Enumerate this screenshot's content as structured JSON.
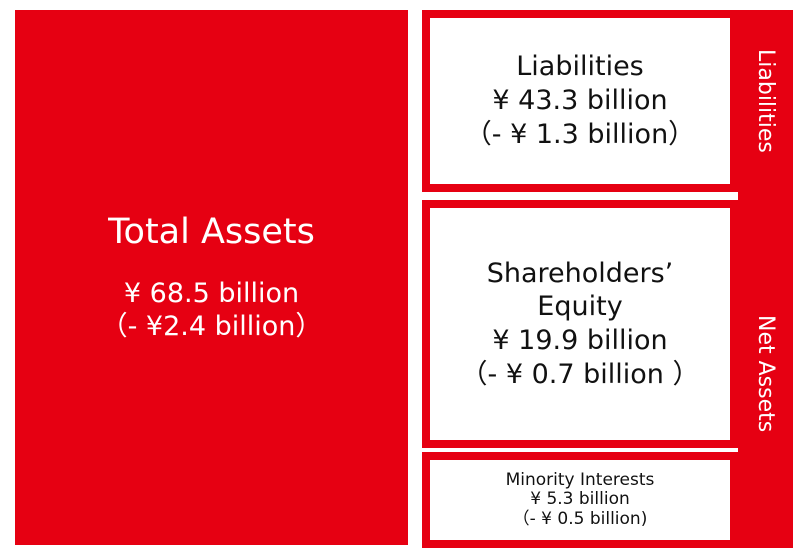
{
  "total_assets": {
    "title": "Total Assets",
    "amount": "¥ 68.5 billion",
    "change": "（- ¥2.4 billion）"
  },
  "liabilities": {
    "title": "Liabilities",
    "amount": "¥ 43.3 billion",
    "change": "（- ¥ 1.3 billion）"
  },
  "shareholders_equity": {
    "title_lines": [
      "Shareholders’",
      "Equity"
    ],
    "amount": "¥ 19.9 billion",
    "change": "（- ¥ 0.7 billion ）"
  },
  "minority_interests": {
    "title": "Minority Interests",
    "amount": "¥ 5.3 billion",
    "change": "（- ¥ 0.5 billion)"
  },
  "side_labels": [
    "Liabilities",
    "Net Assets"
  ]
}
